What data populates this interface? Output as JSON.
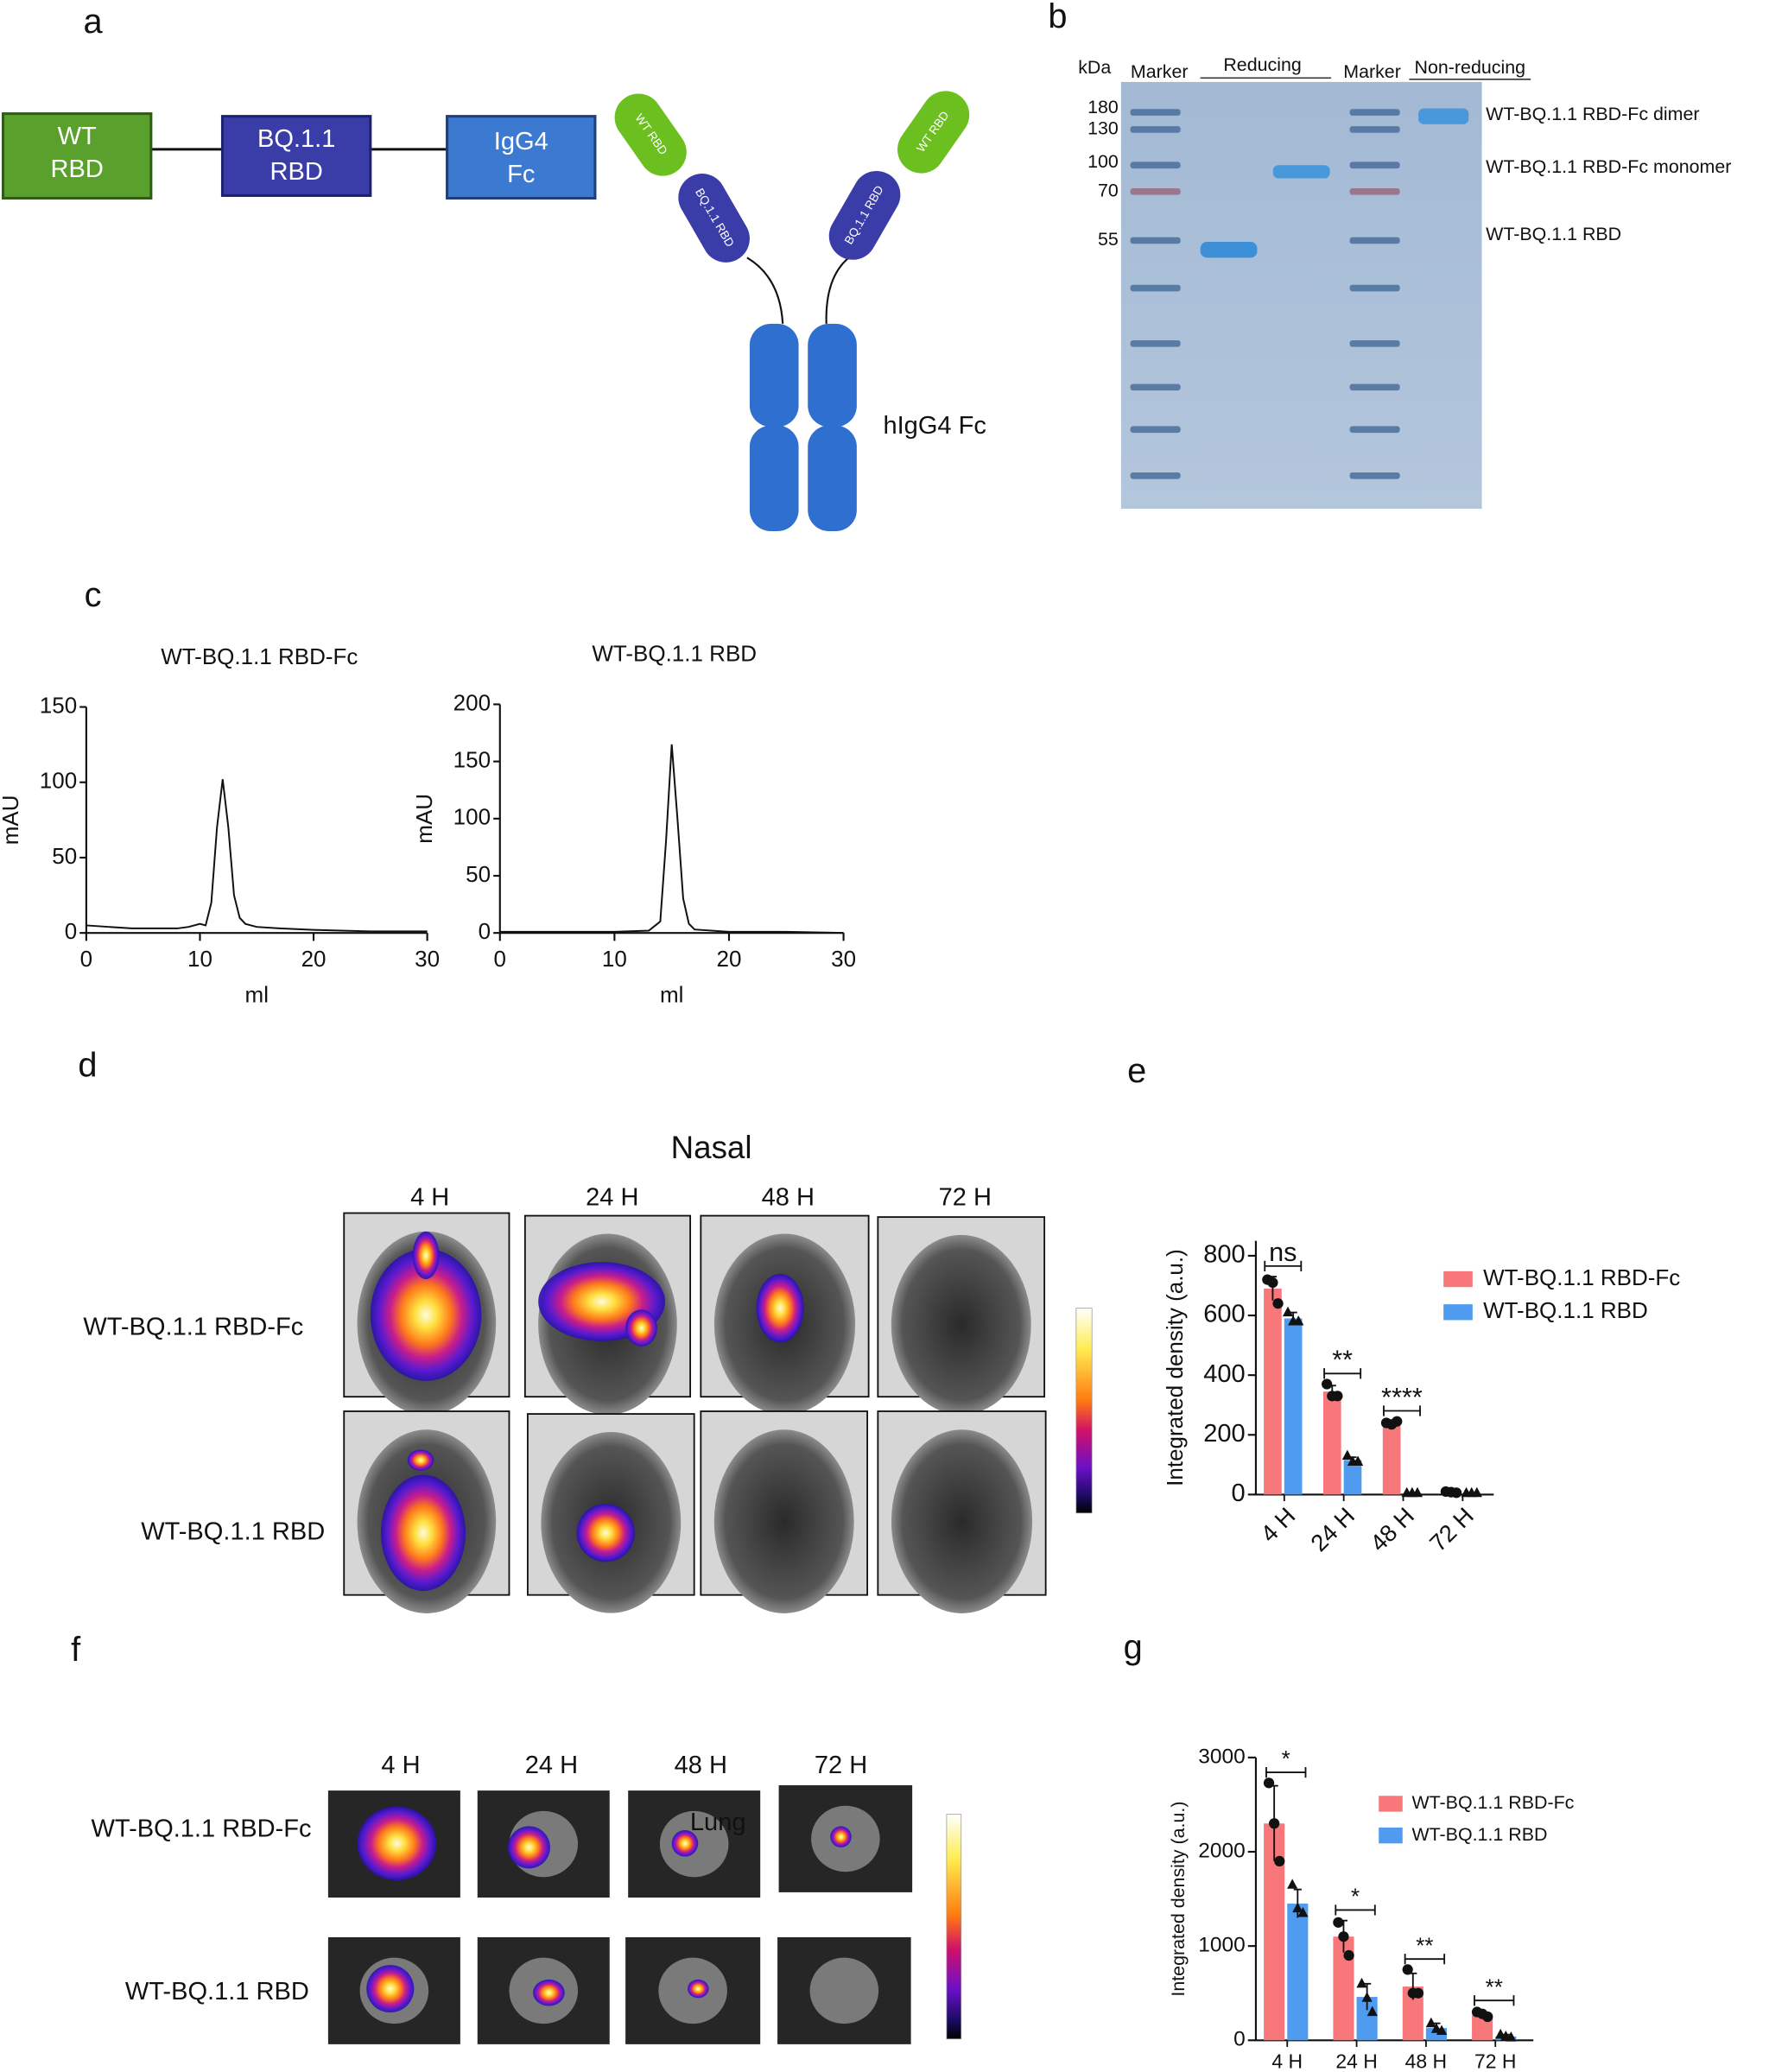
{
  "panel_labels": [
    "a",
    "b",
    "c",
    "d",
    "e",
    "f",
    "g"
  ],
  "construct": {
    "domains": [
      [
        "WT",
        "RBD"
      ],
      [
        "BQ.1.1",
        "RBD"
      ],
      [
        "IgG4",
        "Fc"
      ]
    ],
    "antibody_labels": [
      "WT RBD",
      "BQ.1.1 RBD",
      "hIgG4  Fc"
    ]
  },
  "gel": {
    "kda": "kDa",
    "lanes": [
      "Marker",
      "Reducing",
      "Marker",
      "Non-reducing"
    ],
    "ladder": [
      180,
      130,
      100,
      70,
      55
    ],
    "bands": [
      "WT-BQ.1.1 RBD-Fc dimer",
      "WT-BQ.1.1 RBD-Fc monomer",
      "WT-BQ.1.1 RBD"
    ]
  },
  "nasal": {
    "title": "Nasal",
    "times": [
      "4 H",
      "24 H",
      "48 H",
      "72 H"
    ],
    "rows": [
      "WT-BQ.1.1 RBD-Fc",
      "WT-BQ.1.1 RBD"
    ]
  },
  "lung": {
    "title": "Lung",
    "times": [
      "4 H",
      "24 H",
      "48 H",
      "72 H"
    ],
    "rows": [
      "WT-BQ.1.1 RBD-Fc",
      "WT-BQ.1.1 RBD"
    ]
  },
  "chart_data": [
    {
      "type": "line",
      "title": "WT-BQ.1.1 RBD-Fc",
      "xlabel": "ml",
      "ylabel": "mAU",
      "color": "#111111",
      "x": [
        0,
        2,
        4,
        6,
        8,
        9,
        10,
        10.5,
        11,
        11.5,
        12,
        12.5,
        13,
        13.5,
        14,
        15,
        17,
        20,
        25,
        30
      ],
      "values": [
        5,
        4,
        3,
        3,
        3,
        4,
        6,
        5,
        20,
        70,
        102,
        70,
        25,
        10,
        6,
        4,
        3,
        2,
        1,
        1
      ],
      "xlim": [
        0,
        30
      ],
      "xticks": [
        0,
        10,
        20,
        30
      ],
      "ylim": [
        0,
        150
      ],
      "yticks": [
        0,
        50,
        100,
        150
      ]
    },
    {
      "type": "line",
      "title": "WT-BQ.1.1 RBD",
      "xlabel": "ml",
      "ylabel": "mAU",
      "color": "#111111",
      "x": [
        0,
        5,
        10,
        13,
        14,
        14.5,
        15,
        15.5,
        16,
        16.5,
        17,
        20,
        25,
        30
      ],
      "values": [
        1,
        1,
        1,
        2,
        10,
        80,
        165,
        100,
        30,
        8,
        3,
        1,
        1,
        0
      ],
      "xlim": [
        0,
        30
      ],
      "xticks": [
        0,
        10,
        20,
        30
      ],
      "ylim": [
        0,
        200
      ],
      "yticks": [
        0,
        50,
        100,
        150,
        200
      ]
    },
    {
      "type": "bar",
      "ylabel": "Integrated density (a.u.)",
      "categories": [
        "4 H",
        "24 H",
        "48 H",
        "72 H"
      ],
      "xtick_rotation": 45,
      "series": [
        {
          "name": "WT-BQ.1.1 RBD-Fc",
          "color": "#f7777a",
          "values": [
            690,
            345,
            240,
            8
          ],
          "errors": [
            40,
            20,
            5,
            2
          ],
          "points": [
            [
              720,
              710,
              640
            ],
            [
              370,
              330,
              330
            ],
            [
              240,
              235,
              245
            ],
            [
              10,
              8,
              6
            ]
          ]
        },
        {
          "name": "WT-BQ.1.1 RBD",
          "color": "#4f9bf0",
          "values": [
            590,
            115,
            5,
            5
          ],
          "errors": [
            20,
            10,
            1,
            1
          ],
          "points": [
            [
              610,
              580,
              580
            ],
            [
              130,
              110,
              110
            ],
            [
              5,
              5,
              5
            ],
            [
              5,
              5,
              5
            ]
          ]
        }
      ],
      "annotations": [
        "ns",
        "**",
        "****"
      ],
      "ylim": [
        0,
        850
      ],
      "yticks": [
        0,
        200,
        400,
        600,
        800
      ],
      "legend": "upper right"
    },
    {
      "type": "bar",
      "ylabel": "Integrated density (a.u.)",
      "categories": [
        "4 H",
        "24 H",
        "48 H",
        "72 H"
      ],
      "xtick_rotation": 0,
      "series": [
        {
          "name": "WT-BQ.1.1 RBD-Fc",
          "color": "#f7777a",
          "values": [
            2300,
            1100,
            570,
            270
          ],
          "errors": [
            400,
            170,
            140,
            40
          ],
          "points": [
            [
              2730,
              2300,
              1900
            ],
            [
              1250,
              1100,
              900
            ],
            [
              750,
              500,
              500
            ],
            [
              300,
              280,
              250
            ]
          ]
        },
        {
          "name": "WT-BQ.1.1 RBD",
          "color": "#4f9bf0",
          "values": [
            1450,
            460,
            130,
            40
          ],
          "errors": [
            150,
            140,
            50,
            20
          ],
          "points": [
            [
              1650,
              1400,
              1350
            ],
            [
              600,
              450,
              300
            ],
            [
              180,
              120,
              100
            ],
            [
              60,
              40,
              30
            ]
          ]
        }
      ],
      "annotations": [
        "*",
        "*",
        "**",
        "**"
      ],
      "ylim": [
        0,
        3000
      ],
      "yticks": [
        0,
        1000,
        2000,
        3000
      ],
      "legend": "upper right"
    }
  ]
}
